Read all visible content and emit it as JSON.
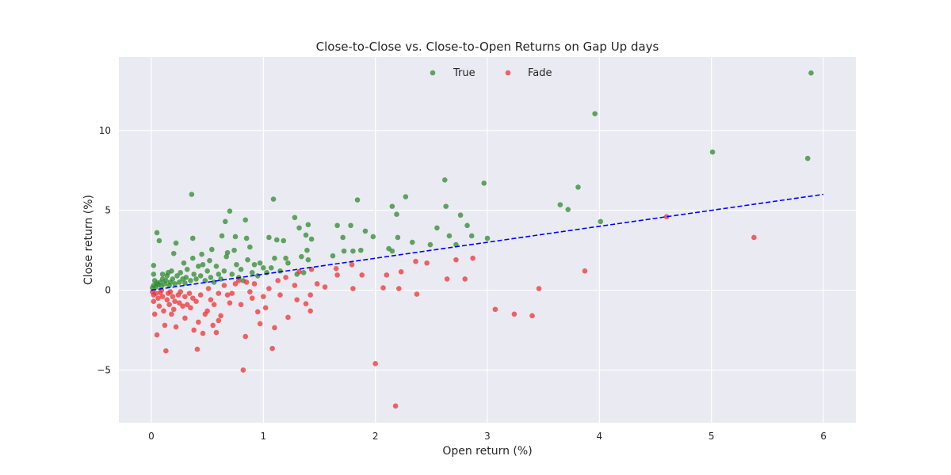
{
  "chart_data": {
    "type": "scatter",
    "title": "Close-to-Close vs. Close-to-Open Returns on Gap Up days",
    "xlabel": "Open return (%)",
    "ylabel": "Close return (%)",
    "xlim": [
      -0.29,
      6.29
    ],
    "ylim": [
      -8.3,
      14.6
    ],
    "xticks": [
      0,
      1,
      2,
      3,
      4,
      5,
      6
    ],
    "yticks": [
      -5,
      0,
      5,
      10
    ],
    "xtick_labels": [
      "0",
      "1",
      "2",
      "3",
      "4",
      "5",
      "6"
    ],
    "ytick_labels": [
      "−5",
      "0",
      "5",
      "10"
    ],
    "grid": true,
    "legend_position": "top-center",
    "colors": {
      "True": "#2e8b2e",
      "Fade": "#ee3333",
      "fit": "#0000ff",
      "plot_bg": "#eaeaf2",
      "grid": "#ffffff"
    },
    "series": [
      {
        "name": "True",
        "points": [
          [
            0.01,
            0.15
          ],
          [
            0.02,
            0.3
          ],
          [
            0.03,
            0.6
          ],
          [
            0.02,
            1.0
          ],
          [
            0.02,
            1.55
          ],
          [
            0.04,
            0.2
          ],
          [
            0.05,
            0.45
          ],
          [
            0.06,
            0.35
          ],
          [
            0.05,
            3.6
          ],
          [
            0.07,
            3.1
          ],
          [
            0.08,
            0.5
          ],
          [
            0.09,
            0.25
          ],
          [
            0.1,
            0.7
          ],
          [
            0.1,
            1.0
          ],
          [
            0.12,
            0.4
          ],
          [
            0.13,
            0.6
          ],
          [
            0.14,
            0.9
          ],
          [
            0.15,
            1.1
          ],
          [
            0.16,
            0.3
          ],
          [
            0.17,
            0.5
          ],
          [
            0.18,
            1.2
          ],
          [
            0.19,
            0.7
          ],
          [
            0.2,
            2.3
          ],
          [
            0.21,
            0.4
          ],
          [
            0.22,
            2.95
          ],
          [
            0.23,
            0.9
          ],
          [
            0.25,
            0.5
          ],
          [
            0.26,
            1.1
          ],
          [
            0.28,
            0.7
          ],
          [
            0.29,
            1.7
          ],
          [
            0.3,
            0.45
          ],
          [
            0.31,
            0.8
          ],
          [
            0.32,
            1.3
          ],
          [
            0.35,
            0.6
          ],
          [
            0.36,
            6.0
          ],
          [
            0.37,
            3.25
          ],
          [
            0.37,
            2.0
          ],
          [
            0.38,
            1.0
          ],
          [
            0.4,
            0.7
          ],
          [
            0.42,
            1.5
          ],
          [
            0.44,
            0.9
          ],
          [
            0.45,
            2.25
          ],
          [
            0.46,
            1.6
          ],
          [
            0.48,
            0.6
          ],
          [
            0.5,
            1.2
          ],
          [
            0.52,
            1.85
          ],
          [
            0.53,
            0.8
          ],
          [
            0.54,
            2.55
          ],
          [
            0.56,
            0.5
          ],
          [
            0.58,
            1.5
          ],
          [
            0.6,
            1.0
          ],
          [
            0.62,
            0.7
          ],
          [
            0.63,
            3.4
          ],
          [
            0.65,
            1.2
          ],
          [
            0.66,
            4.3
          ],
          [
            0.67,
            2.1
          ],
          [
            0.68,
            2.35
          ],
          [
            0.7,
            4.95
          ],
          [
            0.72,
            1.0
          ],
          [
            0.74,
            2.5
          ],
          [
            0.75,
            3.35
          ],
          [
            0.76,
            1.6
          ],
          [
            0.78,
            0.8
          ],
          [
            0.8,
            1.3
          ],
          [
            0.82,
            0.6
          ],
          [
            0.84,
            4.4
          ],
          [
            0.85,
            3.25
          ],
          [
            0.86,
            1.9
          ],
          [
            0.88,
            2.7
          ],
          [
            0.9,
            1.1
          ],
          [
            0.92,
            1.6
          ],
          [
            0.95,
            0.9
          ],
          [
            0.97,
            1.7
          ],
          [
            1.0,
            1.4
          ],
          [
            1.03,
            1.1
          ],
          [
            1.05,
            3.3
          ],
          [
            1.07,
            1.4
          ],
          [
            1.09,
            5.7
          ],
          [
            1.1,
            2.0
          ],
          [
            1.12,
            3.15
          ],
          [
            1.15,
            1.2
          ],
          [
            1.18,
            3.1
          ],
          [
            1.2,
            2.0
          ],
          [
            1.22,
            1.7
          ],
          [
            1.28,
            4.55
          ],
          [
            1.3,
            1.0
          ],
          [
            1.32,
            3.9
          ],
          [
            1.34,
            2.1
          ],
          [
            1.36,
            1.1
          ],
          [
            1.38,
            3.45
          ],
          [
            1.39,
            2.5
          ],
          [
            1.4,
            1.9
          ],
          [
            1.4,
            4.1
          ],
          [
            1.43,
            3.2
          ],
          [
            1.62,
            2.15
          ],
          [
            1.66,
            4.05
          ],
          [
            1.71,
            3.3
          ],
          [
            1.72,
            2.45
          ],
          [
            1.78,
            4.05
          ],
          [
            1.8,
            2.45
          ],
          [
            1.84,
            5.65
          ],
          [
            1.87,
            2.5
          ],
          [
            1.91,
            3.7
          ],
          [
            1.98,
            3.35
          ],
          [
            2.12,
            2.6
          ],
          [
            2.15,
            5.25
          ],
          [
            2.15,
            2.45
          ],
          [
            2.19,
            4.75
          ],
          [
            2.2,
            3.3
          ],
          [
            2.27,
            5.85
          ],
          [
            2.33,
            3.0
          ],
          [
            2.49,
            2.85
          ],
          [
            2.55,
            3.9
          ],
          [
            2.62,
            6.9
          ],
          [
            2.63,
            5.25
          ],
          [
            2.66,
            3.4
          ],
          [
            2.72,
            2.85
          ],
          [
            2.76,
            4.7
          ],
          [
            2.82,
            4.05
          ],
          [
            2.86,
            3.4
          ],
          [
            2.97,
            6.7
          ],
          [
            3.0,
            3.25
          ],
          [
            3.65,
            5.35
          ],
          [
            3.72,
            5.05
          ],
          [
            3.81,
            6.45
          ],
          [
            3.96,
            11.05
          ],
          [
            4.01,
            4.3
          ],
          [
            5.01,
            8.65
          ],
          [
            5.86,
            8.25
          ],
          [
            5.89,
            13.6
          ]
        ]
      },
      {
        "name": "Fade",
        "points": [
          [
            0.01,
            -0.1
          ],
          [
            0.02,
            -0.3
          ],
          [
            0.02,
            -0.7
          ],
          [
            0.03,
            -1.5
          ],
          [
            0.04,
            -0.2
          ],
          [
            0.05,
            -2.8
          ],
          [
            0.06,
            -0.5
          ],
          [
            0.07,
            -1.0
          ],
          [
            0.08,
            -0.15
          ],
          [
            0.09,
            0.0
          ],
          [
            0.1,
            -0.4
          ],
          [
            0.11,
            -1.3
          ],
          [
            0.12,
            -2.2
          ],
          [
            0.13,
            -3.8
          ],
          [
            0.14,
            -0.6
          ],
          [
            0.15,
            -0.2
          ],
          [
            0.16,
            -0.9
          ],
          [
            0.17,
            -0.1
          ],
          [
            0.18,
            -1.5
          ],
          [
            0.19,
            -0.4
          ],
          [
            0.2,
            -1.2
          ],
          [
            0.21,
            -0.7
          ],
          [
            0.22,
            -2.3
          ],
          [
            0.24,
            -0.3
          ],
          [
            0.25,
            -0.8
          ],
          [
            0.26,
            -0.1
          ],
          [
            0.28,
            -1.0
          ],
          [
            0.3,
            -0.4
          ],
          [
            0.3,
            -1.75
          ],
          [
            0.32,
            -0.9
          ],
          [
            0.34,
            -0.2
          ],
          [
            0.35,
            -1.1
          ],
          [
            0.37,
            -0.5
          ],
          [
            0.38,
            -2.5
          ],
          [
            0.4,
            -0.7
          ],
          [
            0.41,
            -3.7
          ],
          [
            0.42,
            -2.0
          ],
          [
            0.44,
            -0.3
          ],
          [
            0.46,
            -2.7
          ],
          [
            0.48,
            -1.5
          ],
          [
            0.5,
            -1.3
          ],
          [
            0.51,
            0.1
          ],
          [
            0.53,
            -0.6
          ],
          [
            0.55,
            -2.2
          ],
          [
            0.56,
            -0.9
          ],
          [
            0.58,
            -2.65
          ],
          [
            0.6,
            -1.9
          ],
          [
            0.6,
            -0.2
          ],
          [
            0.62,
            -1.6
          ],
          [
            0.65,
            0.3
          ],
          [
            0.68,
            -0.3
          ],
          [
            0.7,
            -0.8
          ],
          [
            0.72,
            -0.2
          ],
          [
            0.75,
            0.4
          ],
          [
            0.78,
            0.6
          ],
          [
            0.8,
            -0.9
          ],
          [
            0.82,
            -5.0
          ],
          [
            0.84,
            -2.9
          ],
          [
            0.85,
            0.5
          ],
          [
            0.88,
            -0.1
          ],
          [
            0.9,
            -0.5
          ],
          [
            0.92,
            0.4
          ],
          [
            0.95,
            -1.35
          ],
          [
            0.97,
            -2.1
          ],
          [
            1.0,
            -0.4
          ],
          [
            1.02,
            -1.1
          ],
          [
            1.05,
            0.1
          ],
          [
            1.08,
            -3.65
          ],
          [
            1.1,
            -2.35
          ],
          [
            1.13,
            0.6
          ],
          [
            1.15,
            -0.3
          ],
          [
            1.2,
            0.8
          ],
          [
            1.22,
            -1.7
          ],
          [
            1.28,
            0.3
          ],
          [
            1.3,
            -0.6
          ],
          [
            1.32,
            1.15
          ],
          [
            1.38,
            -0.85
          ],
          [
            1.42,
            -0.3
          ],
          [
            1.42,
            -1.3
          ],
          [
            1.43,
            1.3
          ],
          [
            1.48,
            0.4
          ],
          [
            1.55,
            0.2
          ],
          [
            1.65,
            1.35
          ],
          [
            1.66,
            0.95
          ],
          [
            1.79,
            1.6
          ],
          [
            1.8,
            0.1
          ],
          [
            1.88,
            0.95
          ],
          [
            2.0,
            -4.6
          ],
          [
            2.07,
            0.15
          ],
          [
            2.1,
            0.95
          ],
          [
            2.18,
            -7.25
          ],
          [
            2.21,
            0.1
          ],
          [
            2.23,
            1.15
          ],
          [
            2.36,
            1.8
          ],
          [
            2.37,
            -0.25
          ],
          [
            2.46,
            1.7
          ],
          [
            2.64,
            0.7
          ],
          [
            2.72,
            1.9
          ],
          [
            2.8,
            0.7
          ],
          [
            2.87,
            2.0
          ],
          [
            3.07,
            -1.2
          ],
          [
            3.24,
            -1.5
          ],
          [
            3.4,
            -1.6
          ],
          [
            3.46,
            0.1
          ],
          [
            3.87,
            1.2
          ],
          [
            4.6,
            4.6
          ],
          [
            5.38,
            3.3
          ]
        ]
      }
    ],
    "fit_line": {
      "x": [
        0,
        6
      ],
      "y": [
        0.0,
        6.0
      ]
    }
  }
}
